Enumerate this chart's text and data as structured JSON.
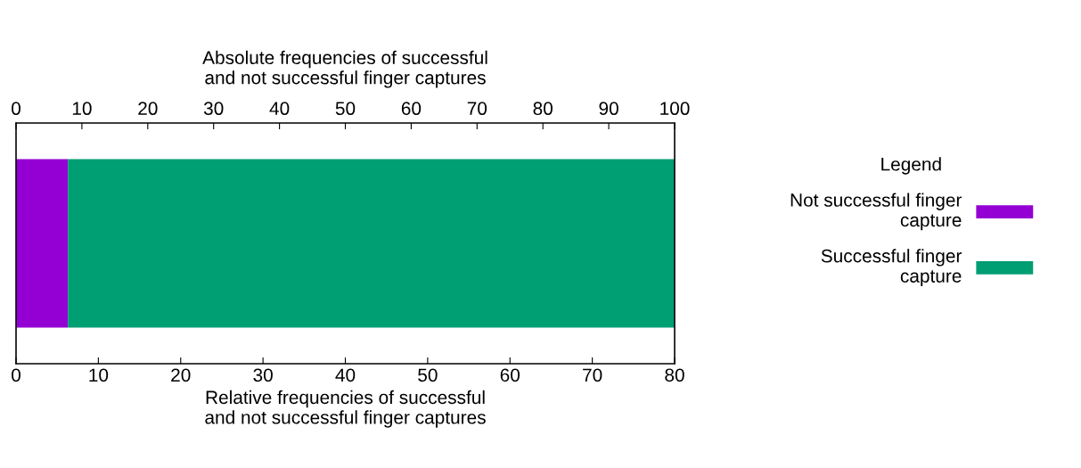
{
  "chart_data": {
    "type": "bar",
    "orientation": "horizontal",
    "stacked": true,
    "categories": [
      null
    ],
    "series": [
      {
        "name": "Not successful finger capture",
        "color": "#9400d3",
        "values": [
          6.3
        ]
      },
      {
        "name": "Successful finger capture",
        "color": "#009e73",
        "values": [
          73.7
        ]
      }
    ],
    "xlabel": "Relative frequencies of successful\nand not successful finger captures",
    "x2label": "Absolute frequencies of successful\nand not successful finger captures",
    "xlim": [
      0,
      80
    ],
    "xticks": [
      0,
      10,
      20,
      30,
      40,
      50,
      60,
      70,
      80
    ],
    "x2lim": [
      0,
      100
    ],
    "x2ticks": [
      0,
      10,
      20,
      30,
      40,
      50,
      60,
      70,
      80,
      90,
      100
    ],
    "legend": "right",
    "legend_title": "Legend",
    "grid": false
  }
}
